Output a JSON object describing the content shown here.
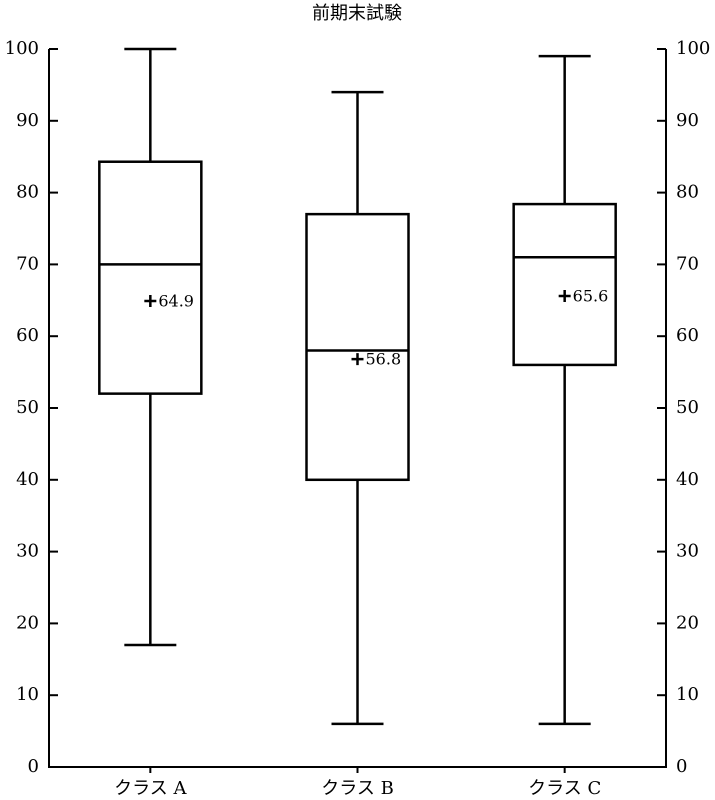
{
  "chart_data": {
    "type": "box",
    "title": "前期末試験",
    "categories": [
      "クラス A",
      "クラス B",
      "クラス C"
    ],
    "boxes": [
      {
        "whisker_low": 17,
        "q1": 52,
        "median": 70,
        "q3": 84.3,
        "whisker_high": 100,
        "mean": 64.9
      },
      {
        "whisker_low": 6,
        "q1": 40,
        "median": 58,
        "q3": 77,
        "whisker_high": 94,
        "mean": 56.8
      },
      {
        "whisker_low": 6,
        "q1": 56,
        "median": 71,
        "q3": 78.4,
        "whisker_high": 99,
        "mean": 65.6
      }
    ],
    "color": "#000000",
    "ylim": [
      0,
      100
    ],
    "yticks": [
      0,
      10,
      20,
      30,
      40,
      50,
      60,
      70,
      80,
      90,
      100
    ],
    "y2lim": [
      0,
      100
    ],
    "y2ticks": [
      0,
      10,
      20,
      30,
      40,
      50,
      60,
      70,
      80,
      90,
      100
    ]
  }
}
